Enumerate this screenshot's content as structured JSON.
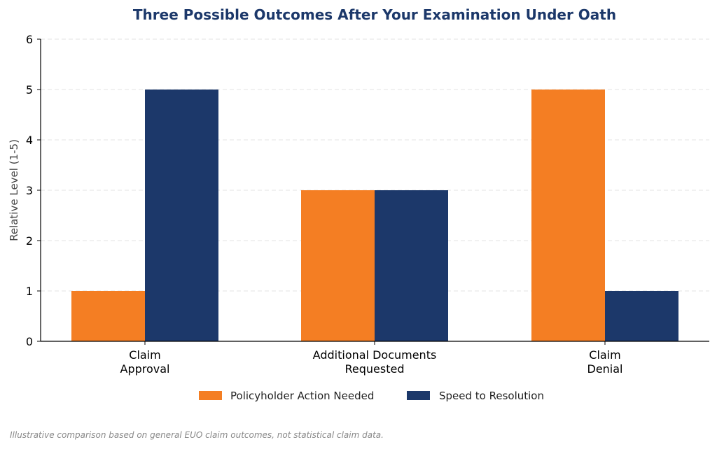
{
  "chart_data": {
    "type": "bar",
    "title": "Three Possible Outcomes After Your Examination Under Oath",
    "xlabel": "",
    "ylabel": "Relative Level (1-5)",
    "categories": [
      [
        "Claim",
        "Approval"
      ],
      [
        "Additional Documents",
        "Requested"
      ],
      [
        "Claim",
        "Denial"
      ]
    ],
    "series": [
      {
        "name": "Policyholder Action Needed",
        "values": [
          1,
          3,
          5
        ],
        "color": "#F47E23"
      },
      {
        "name": "Speed to Resolution",
        "values": [
          5,
          3,
          1
        ],
        "color": "#1C386A"
      }
    ],
    "ylim": [
      0,
      6
    ],
    "yticks": [
      "0",
      "1",
      "2",
      "3",
      "4",
      "5",
      "6"
    ],
    "grid": "horizontal dashed",
    "legend": "bottom-center"
  },
  "colors": {
    "title": "#1C386A",
    "grid": "#E3E3E3",
    "axis": "#000000"
  },
  "footnote": "Illustrative comparison based on general EUO claim outcomes, not statistical claim data."
}
